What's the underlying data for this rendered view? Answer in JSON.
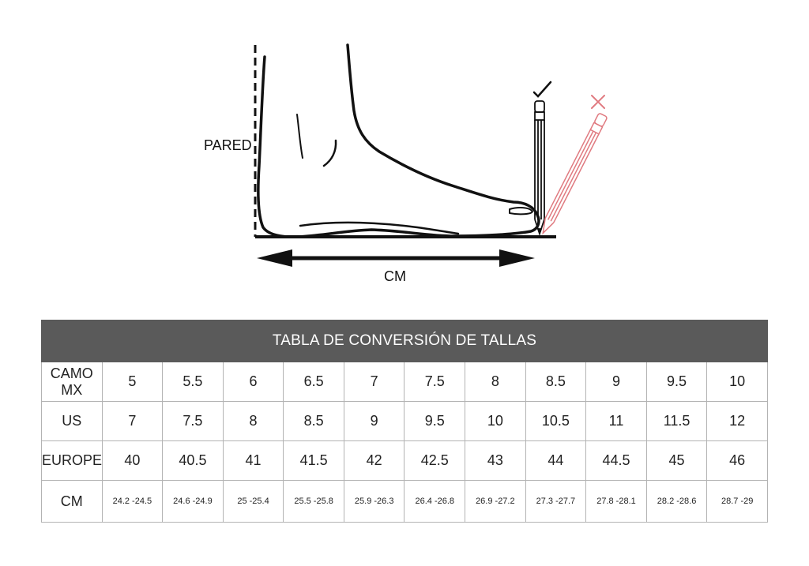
{
  "illustration": {
    "wall_label": "PARED",
    "measure_label": "CM",
    "correct_mark": "check",
    "wrong_mark": "cross"
  },
  "table": {
    "title": "TABLA DE CONVERSIÓN DE TALLAS",
    "rows": [
      {
        "label": "CAMO MX",
        "values": [
          "5",
          "5.5",
          "6",
          "6.5",
          "7",
          "7.5",
          "8",
          "8.5",
          "9",
          "9.5",
          "10"
        ]
      },
      {
        "label": "US",
        "values": [
          "7",
          "7.5",
          "8",
          "8.5",
          "9",
          "9.5",
          "10",
          "10.5",
          "11",
          "11.5",
          "12"
        ]
      },
      {
        "label": "EUROPE",
        "values": [
          "40",
          "40.5",
          "41",
          "41.5",
          "42",
          "42.5",
          "43",
          "44",
          "44.5",
          "45",
          "46"
        ]
      },
      {
        "label": "CM",
        "values": [
          "24.2 -24.5",
          "24.6 -24.9",
          "25 -25.4",
          "25.5 -25.8",
          "25.9 -26.3",
          "26.4 -26.8",
          "26.9 -27.2",
          "27.3 -27.7",
          "27.8 -28.1",
          "28.2 -28.6",
          "28.7 -29"
        ]
      }
    ]
  },
  "colors": {
    "header_bg": "#5a5a5a",
    "wrong_pencil": "#e07a80",
    "line": "#111111"
  }
}
